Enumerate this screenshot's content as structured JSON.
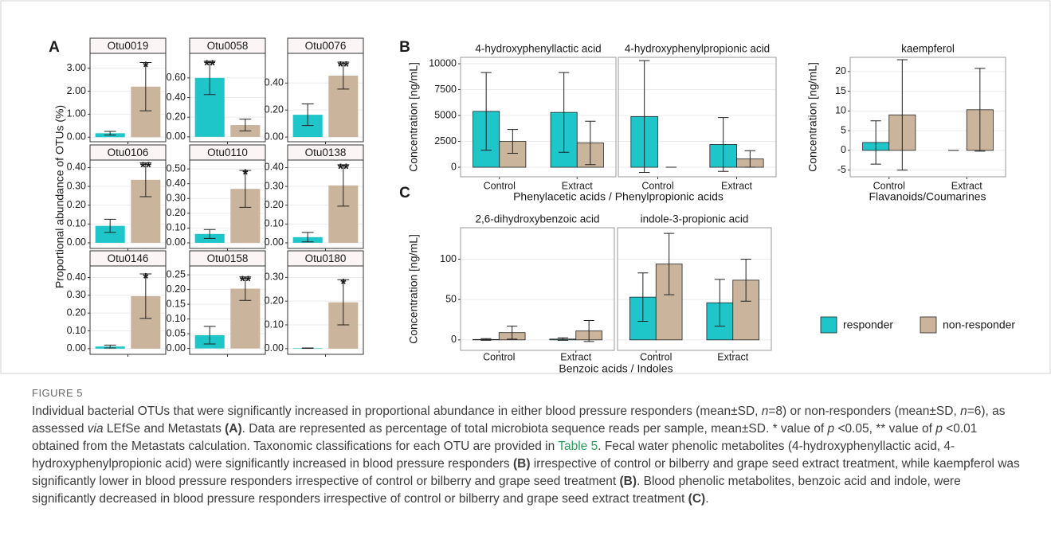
{
  "chart_data": [
    {
      "type": "bar",
      "panel": "A",
      "ylabel": "Proportional abundance of OTUs (%)",
      "facets": [
        {
          "title": "Otu0019",
          "values": [
            [
              0.17
            ],
            [
              2.2
            ]
          ],
          "errors": [
            [
              0.08
            ],
            [
              1.05
            ]
          ],
          "annotations": [
            [
              null
            ],
            [
              "*"
            ]
          ],
          "ylim": [
            -0.2,
            3.65
          ],
          "yticks": [
            {
              "value": 0,
              "label": "0.00"
            },
            {
              "value": 1,
              "label": "1.00"
            },
            {
              "value": 2,
              "label": "2.00"
            },
            {
              "value": 3,
              "label": "3.00"
            }
          ]
        },
        {
          "title": "Otu0058",
          "values": [
            [
              0.6
            ],
            [
              0.12
            ]
          ],
          "errors": [
            [
              0.17
            ],
            [
              0.06
            ]
          ],
          "annotations": [
            [
              "**"
            ],
            [
              null
            ]
          ],
          "ylim": [
            -0.05,
            0.85
          ],
          "yticks": [
            {
              "value": 0,
              "label": "0.00"
            },
            {
              "value": 0.2,
              "label": "0.20"
            },
            {
              "value": 0.4,
              "label": "0.40"
            },
            {
              "value": 0.6,
              "label": "0.60"
            }
          ]
        },
        {
          "title": "Otu0076",
          "values": [
            [
              0.165
            ],
            [
              0.455
            ]
          ],
          "errors": [
            [
              0.08
            ],
            [
              0.1
            ]
          ],
          "annotations": [
            [
              null
            ],
            [
              "**"
            ]
          ],
          "ylim": [
            -0.035,
            0.62
          ],
          "yticks": [
            {
              "value": 0,
              "label": "0.00"
            },
            {
              "value": 0.2,
              "label": "0.20"
            },
            {
              "value": 0.4,
              "label": "0.40"
            }
          ]
        },
        {
          "title": "Otu0106",
          "values": [
            [
              0.09
            ],
            [
              0.335
            ]
          ],
          "errors": [
            [
              0.035
            ],
            [
              0.09
            ]
          ],
          "annotations": [
            [
              null
            ],
            [
              "**"
            ]
          ],
          "ylim": [
            -0.03,
            0.44
          ],
          "yticks": [
            {
              "value": 0,
              "label": "0.00"
            },
            {
              "value": 0.1,
              "label": "0.10"
            },
            {
              "value": 0.2,
              "label": "0.20"
            },
            {
              "value": 0.3,
              "label": "0.30"
            },
            {
              "value": 0.4,
              "label": "0.40"
            }
          ]
        },
        {
          "title": "Otu0110",
          "values": [
            [
              0.06
            ],
            [
              0.365
            ]
          ],
          "errors": [
            [
              0.03
            ],
            [
              0.125
            ]
          ],
          "annotations": [
            [
              null
            ],
            [
              "*"
            ]
          ],
          "ylim": [
            -0.038,
            0.56
          ],
          "yticks": [
            {
              "value": 0,
              "label": "0.00"
            },
            {
              "value": 0.1,
              "label": "0.10"
            },
            {
              "value": 0.2,
              "label": "0.20"
            },
            {
              "value": 0.3,
              "label": "0.30"
            },
            {
              "value": 0.4,
              "label": "0.40"
            },
            {
              "value": 0.5,
              "label": "0.50"
            }
          ]
        },
        {
          "title": "Otu0138",
          "values": [
            [
              0.03
            ],
            [
              0.305
            ]
          ],
          "errors": [
            [
              0.025
            ],
            [
              0.11
            ]
          ],
          "annotations": [
            [
              null
            ],
            [
              "**"
            ]
          ],
          "ylim": [
            -0.03,
            0.44
          ],
          "yticks": [
            {
              "value": 0,
              "label": "0.00"
            },
            {
              "value": 0.1,
              "label": "0.10"
            },
            {
              "value": 0.2,
              "label": "0.20"
            },
            {
              "value": 0.3,
              "label": "0.30"
            },
            {
              "value": 0.4,
              "label": "0.40"
            }
          ]
        },
        {
          "title": "Otu0146",
          "values": [
            [
              0.012
            ],
            [
              0.295
            ]
          ],
          "errors": [
            [
              0.008
            ],
            [
              0.125
            ]
          ],
          "annotations": [
            [
              null
            ],
            [
              "*"
            ]
          ],
          "ylim": [
            -0.032,
            0.465
          ],
          "yticks": [
            {
              "value": 0,
              "label": "0.00"
            },
            {
              "value": 0.1,
              "label": "0.10"
            },
            {
              "value": 0.2,
              "label": "0.20"
            },
            {
              "value": 0.3,
              "label": "0.30"
            },
            {
              "value": 0.4,
              "label": "0.40"
            }
          ]
        },
        {
          "title": "Otu0158",
          "values": [
            [
              0.045
            ],
            [
              0.203
            ]
          ],
          "errors": [
            [
              0.03
            ],
            [
              0.04
            ]
          ],
          "annotations": [
            [
              null
            ],
            [
              "**"
            ]
          ],
          "ylim": [
            -0.02,
            0.28
          ],
          "yticks": [
            {
              "value": 0,
              "label": "0.00"
            },
            {
              "value": 0.05,
              "label": "0.05"
            },
            {
              "value": 0.1,
              "label": "0.10"
            },
            {
              "value": 0.15,
              "label": "0.15"
            },
            {
              "value": 0.2,
              "label": "0.20"
            },
            {
              "value": 0.25,
              "label": "0.25"
            }
          ]
        },
        {
          "title": "Otu0180",
          "values": [
            [
              0.002
            ],
            [
              0.195
            ]
          ],
          "errors": [
            [
              0.001
            ],
            [
              0.095
            ]
          ],
          "annotations": [
            [
              null
            ],
            [
              "*"
            ]
          ],
          "ylim": [
            -0.024,
            0.348
          ],
          "yticks": [
            {
              "value": 0,
              "label": "0.00"
            },
            {
              "value": 0.1,
              "label": "0.10"
            },
            {
              "value": 0.2,
              "label": "0.20"
            },
            {
              "value": 0.3,
              "label": "0.30"
            }
          ]
        }
      ]
    },
    {
      "type": "bar",
      "panel": "B",
      "ylabel": "Concentration [ng/mL]",
      "xlabel": "Phenylacetic acids / Phenylpropionic acids",
      "categories": [
        "Control",
        "Extract"
      ],
      "ylim": [
        -920,
        10620
      ],
      "yticks": [
        0,
        2500,
        5000,
        7500,
        10000
      ],
      "facets": [
        {
          "title": "4-hydroxyphenyllactic acid",
          "values": [
            [
              5400,
              5300
            ],
            [
              2500,
              2350
            ]
          ],
          "errors": [
            [
              3750,
              3850
            ],
            [
              1150,
              2100
            ]
          ]
        },
        {
          "title": "4-hydroxyphenylpropionic acid",
          "values": [
            [
              4900,
              2200
            ],
            [
              0,
              800
            ]
          ],
          "errors": [
            [
              5400,
              2600
            ],
            [
              0,
              800
            ]
          ]
        }
      ]
    },
    {
      "type": "bar",
      "ylabel": "Concentration [ng/mL]",
      "xlabel": "Flavanoids/Coumarines",
      "categories": [
        "Control",
        "Extract"
      ],
      "ylim": [
        -6.7,
        23.6
      ],
      "yticks": [
        -5,
        0,
        5,
        10,
        15,
        20
      ],
      "facets": [
        {
          "title": "kaempferol",
          "values": [
            [
              2,
              0
            ],
            [
              9,
              10.3
            ]
          ],
          "errors": [
            [
              5.5,
              0
            ],
            [
              14,
              10.5
            ]
          ]
        }
      ]
    },
    {
      "type": "bar",
      "panel": "C",
      "ylabel": "Concentration [ng/mL]",
      "xlabel": "Benzoic acids / Indoles",
      "categories": [
        "Control",
        "Extract"
      ],
      "ylim": [
        -13,
        139
      ],
      "yticks": [
        0,
        50,
        100
      ],
      "facets": [
        {
          "title": "2,6-dihydroxybenzoic acid",
          "values": [
            [
              0.5,
              1
            ],
            [
              9,
              11
            ]
          ],
          "errors": [
            [
              1,
              1.5
            ],
            [
              8,
              13
            ]
          ]
        },
        {
          "title": "indole-3-propionic acid",
          "values": [
            [
              53,
              46
            ],
            [
              94,
              74
            ]
          ],
          "errors": [
            [
              30,
              29
            ],
            [
              38,
              26
            ]
          ]
        }
      ]
    }
  ],
  "legend": {
    "series": [
      {
        "name": "responder",
        "color": "#1fc6c9"
      },
      {
        "name": "non-responder",
        "color": "#cab49c"
      }
    ]
  },
  "figure_label": "FIGURE 5",
  "caption": [
    {
      "text": "Individual bacterial OTUs that were significantly increased in proportional abundance in either blood pressure responders (mean±SD, ",
      "style": "plain"
    },
    {
      "text": "n",
      "style": "italic"
    },
    {
      "text": "=8) or non-responders (mean±SD, ",
      "style": "plain"
    },
    {
      "text": "n",
      "style": "italic"
    },
    {
      "text": "=6), as assessed ",
      "style": "plain"
    },
    {
      "text": "via",
      "style": "italic"
    },
    {
      "text": " LEfSe and Metastats ",
      "style": "plain"
    },
    {
      "text": "(A)",
      "style": "bold"
    },
    {
      "text": ". Data are represented as percentage of total microbiota sequence reads per sample, mean±SD. * value of ",
      "style": "plain"
    },
    {
      "text": "p",
      "style": "italic"
    },
    {
      "text": " <0.05, ** value of ",
      "style": "plain"
    },
    {
      "text": "p",
      "style": "italic"
    },
    {
      "text": " <0.01 obtained from the Metastats calculation. Taxonomic classifications for each OTU are provided in ",
      "style": "plain"
    },
    {
      "text": "Table 5",
      "style": "link"
    },
    {
      "text": ". Fecal water phenolic metabolites (4-hydroxyphenyllactic acid, 4-hydroxyphenylpropionic acid) were significantly increased in blood pressure responders ",
      "style": "plain"
    },
    {
      "text": "(B)",
      "style": "bold"
    },
    {
      "text": " irrespective of control or bilberry and grape seed extract treatment, while kaempferol was significantly lower in blood pressure responders irrespective of control or bilberry and grape seed treatment ",
      "style": "plain"
    },
    {
      "text": "(B)",
      "style": "bold"
    },
    {
      "text": ". Blood phenolic metabolites, benzoic acid and indole, were significantly decreased in blood pressure responders irrespective of control or bilberry and grape seed extract treatment ",
      "style": "plain"
    },
    {
      "text": "(C)",
      "style": "bold"
    },
    {
      "text": ".",
      "style": "plain"
    }
  ]
}
